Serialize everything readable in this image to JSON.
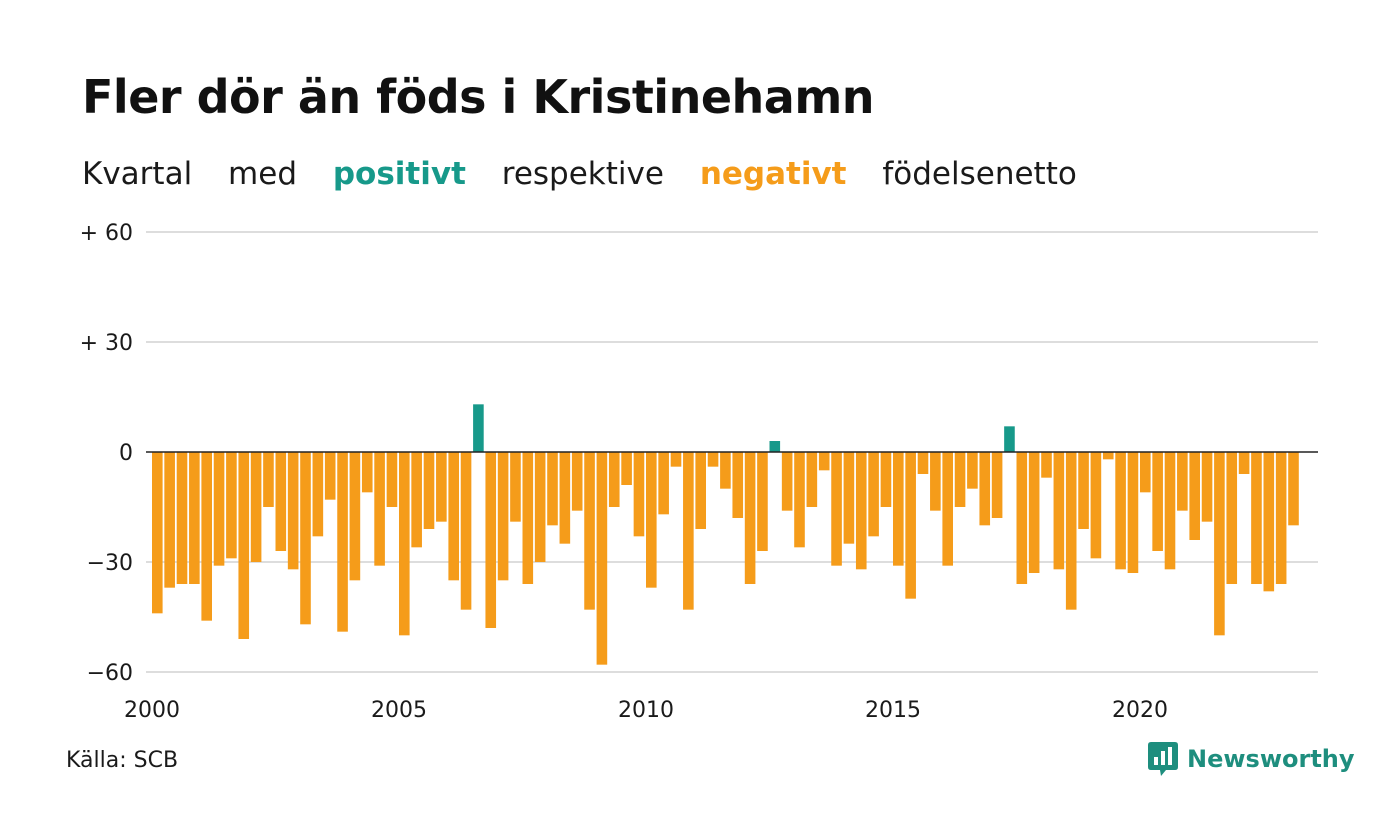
{
  "title": "Fler dör än föds i Kristinehamn",
  "subtitle": {
    "w1": "Kvartal",
    "w2": "med",
    "positive": "positivt",
    "w3": "respektive",
    "negative": "negativt",
    "w4": "födelsenetto"
  },
  "source": "Källa: SCB",
  "brand": {
    "name": "Newsworthy",
    "icon": "newsworthy-logo-icon"
  },
  "colors": {
    "positive": "#17998a",
    "negative": "#f59c1a",
    "grid": "#dddddd",
    "zero": "#222222"
  },
  "chart_data": {
    "type": "bar",
    "title": "Fler dör än föds i Kristinehamn",
    "subtitle": "Kvartal med positivt respektive negativt födelsenetto",
    "xlabel": "",
    "ylabel": "",
    "x_start": 2000,
    "x_end": 2023.75,
    "periods_per_year": 4,
    "ylim": [
      -60,
      60
    ],
    "yticks": [
      60,
      30,
      0,
      -30,
      -60
    ],
    "ytick_labels": [
      "+ 60",
      "+ 30",
      "0",
      "−30",
      "−60"
    ],
    "xticks": [
      2000,
      2005,
      2010,
      2015,
      2020
    ],
    "xtick_labels": [
      "2000",
      "2005",
      "2010",
      "2015",
      "2020"
    ],
    "grid": true,
    "legend": "none",
    "values": [
      -44,
      -37,
      -36,
      -36,
      -46,
      -31,
      -29,
      -51,
      -30,
      -15,
      -27,
      -32,
      -47,
      -23,
      -13,
      -49,
      -35,
      -11,
      -31,
      -15,
      -50,
      -26,
      -21,
      -19,
      -35,
      -43,
      13,
      -48,
      -35,
      -19,
      -36,
      -30,
      -20,
      -25,
      -16,
      -43,
      -58,
      -15,
      -9,
      -23,
      -37,
      -17,
      -4,
      -43,
      -21,
      -4,
      -10,
      -18,
      -36,
      -27,
      3,
      -16,
      -26,
      -15,
      -5,
      -31,
      -25,
      -32,
      -23,
      -15,
      -31,
      -40,
      -6,
      -16,
      -31,
      -15,
      -10,
      -20,
      -18,
      7,
      -36,
      -33,
      -7,
      -32,
      -43,
      -21,
      -29,
      -2,
      -32,
      -33,
      -11,
      -27,
      -32,
      -16,
      -24,
      -19,
      -50,
      -36,
      -6,
      -36,
      -38,
      -36,
      -20
    ]
  }
}
